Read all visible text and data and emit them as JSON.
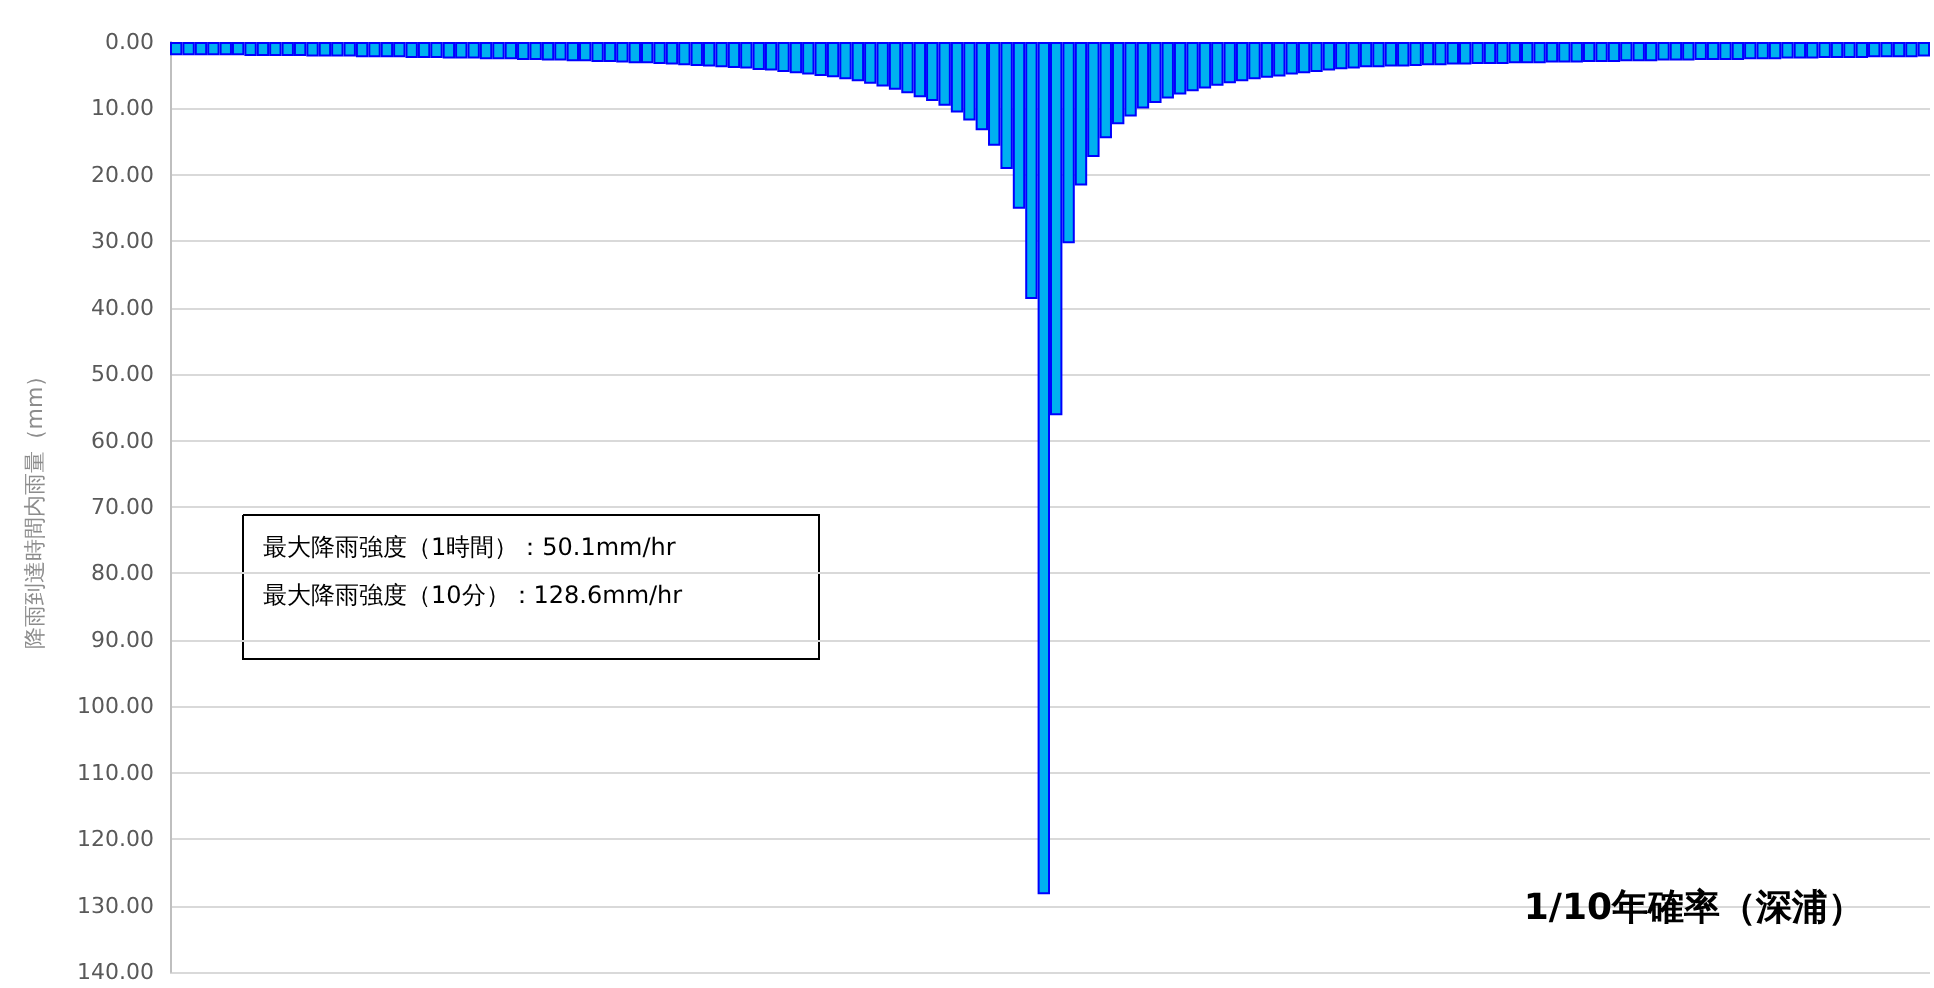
{
  "chart_data": {
    "type": "bar",
    "title": "1/10年確率（深浦）",
    "ylabel": "降雨到達時間内雨量（mm）",
    "annotations": [
      "最大降雨強度（1時間）：50.1mm/hr",
      "最大降雨強度（10分）：128.6mm/hr"
    ],
    "categories": [
      null,
      null,
      null,
      null,
      null,
      null,
      null,
      null,
      null,
      null,
      null,
      null,
      null,
      null,
      null,
      null,
      null,
      null,
      null,
      null,
      null,
      null,
      null,
      null,
      null,
      null,
      null,
      null,
      null,
      null,
      null,
      null,
      null,
      null,
      null,
      null,
      null,
      null,
      null,
      null,
      null,
      null,
      null,
      null,
      null,
      null,
      null,
      null,
      null,
      null,
      null,
      null,
      null,
      null,
      null,
      null,
      null,
      null,
      null,
      null,
      null,
      null,
      null,
      null,
      null,
      null,
      null,
      null,
      null,
      null,
      null,
      null,
      null,
      null,
      null,
      null,
      null,
      null,
      null,
      null,
      null,
      null,
      null,
      null,
      null,
      null,
      null,
      null,
      null,
      null,
      null,
      null,
      null,
      null,
      null,
      null,
      null,
      null,
      null,
      null,
      null,
      null,
      null,
      null,
      null,
      null,
      null,
      null,
      null,
      null,
      null,
      null,
      null,
      null,
      null,
      null,
      null,
      null,
      null,
      null,
      null,
      null,
      null,
      null,
      null,
      null,
      null,
      null,
      null,
      null,
      null,
      null,
      null,
      null,
      null,
      null,
      null,
      null,
      null,
      null,
      null,
      null
    ],
    "values": [
      2.0,
      2.0,
      2.0,
      2.0,
      2.0,
      2.0,
      2.1,
      2.1,
      2.1,
      2.1,
      2.1,
      2.2,
      2.2,
      2.2,
      2.2,
      2.3,
      2.3,
      2.3,
      2.3,
      2.4,
      2.4,
      2.4,
      2.5,
      2.5,
      2.5,
      2.6,
      2.6,
      2.6,
      2.7,
      2.7,
      2.8,
      2.8,
      2.9,
      2.9,
      3.0,
      3.0,
      3.1,
      3.2,
      3.2,
      3.3,
      3.4,
      3.5,
      3.6,
      3.7,
      3.8,
      3.9,
      4.0,
      4.2,
      4.3,
      4.5,
      4.7,
      4.9,
      5.1,
      5.3,
      5.6,
      5.9,
      6.3,
      6.7,
      7.2,
      7.7,
      8.3,
      8.9,
      9.6,
      10.6,
      11.8,
      13.3,
      15.6,
      19.1,
      25.1,
      38.7,
      128.3,
      56.2,
      30.3,
      21.6,
      17.3,
      14.5,
      12.4,
      11.2,
      10.0,
      9.2,
      8.5,
      7.9,
      7.4,
      7.0,
      6.6,
      6.2,
      5.9,
      5.6,
      5.4,
      5.2,
      4.9,
      4.7,
      4.5,
      4.3,
      4.1,
      4.0,
      3.8,
      3.8,
      3.7,
      3.7,
      3.6,
      3.5,
      3.5,
      3.4,
      3.4,
      3.3,
      3.3,
      3.3,
      3.2,
      3.2,
      3.2,
      3.1,
      3.1,
      3.1,
      3.0,
      3.0,
      3.0,
      2.9,
      2.9,
      2.9,
      2.8,
      2.8,
      2.8,
      2.7,
      2.7,
      2.7,
      2.7,
      2.6,
      2.6,
      2.6,
      2.5,
      2.5,
      2.5,
      2.4,
      2.4,
      2.4,
      2.4,
      2.3,
      2.3,
      2.3,
      2.3,
      2.2
    ],
    "color": "#00b0f0",
    "ylim": [
      140,
      0
    ],
    "yticks": [
      {
        "value": 0,
        "label": "0.00"
      },
      {
        "value": 10,
        "label": "10.00"
      },
      {
        "value": 20,
        "label": "20.00"
      },
      {
        "value": 30,
        "label": "30.00"
      },
      {
        "value": 40,
        "label": "40.00"
      },
      {
        "value": 50,
        "label": "50.00"
      },
      {
        "value": 60,
        "label": "60.00"
      },
      {
        "value": 70,
        "label": "70.00"
      },
      {
        "value": 80,
        "label": "80.00"
      },
      {
        "value": 90,
        "label": "90.00"
      },
      {
        "value": 100,
        "label": "100.00"
      },
      {
        "value": 110,
        "label": "110.00"
      },
      {
        "value": 120,
        "label": "120.00"
      },
      {
        "value": 130,
        "label": "130.00"
      },
      {
        "value": 140,
        "label": "140.00"
      }
    ],
    "grid": "y"
  }
}
